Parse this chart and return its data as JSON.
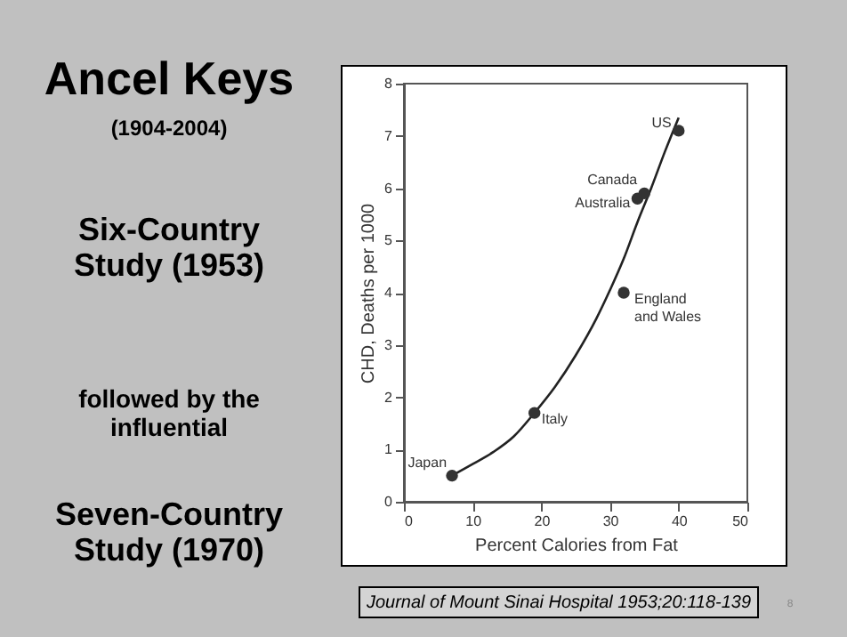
{
  "chart_data": {
    "type": "scatter",
    "title": "Ancel Keys",
    "subtitle": "(1904-2004)",
    "xlabel": "Percent Calories from Fat",
    "ylabel": "CHD, Deaths per 1000",
    "xlim": [
      0,
      50
    ],
    "xticks": [
      0,
      10,
      20,
      30,
      40,
      50
    ],
    "ylim": [
      0,
      8
    ],
    "yticks": [
      0,
      1,
      2,
      3,
      4,
      5,
      6,
      7,
      8
    ],
    "grid": false,
    "marker": "circle",
    "series": [
      {
        "type": "line",
        "marker": "none",
        "color": "#222222",
        "x": [
          7,
          10,
          13,
          16,
          19,
          22,
          25,
          28,
          30,
          32,
          34,
          36,
          38,
          40
        ],
        "values": [
          0.5,
          0.72,
          0.95,
          1.25,
          1.7,
          2.2,
          2.8,
          3.5,
          4.05,
          4.65,
          5.35,
          6.0,
          6.7,
          7.35
        ]
      },
      {
        "type": "scatter",
        "color": "#333333",
        "x": [
          7,
          19,
          32,
          34,
          35,
          40
        ],
        "values": [
          0.5,
          1.7,
          4.0,
          5.8,
          5.9,
          7.1
        ]
      }
    ],
    "annotations": [
      {
        "text": "Japan",
        "x": 7,
        "y": 0.5
      },
      {
        "text": "Italy",
        "x": 19,
        "y": 1.7
      },
      {
        "text": "England and Wales",
        "x": 32,
        "y": 4.0
      },
      {
        "text": "Australia",
        "x": 34,
        "y": 5.8
      },
      {
        "text": "Canada",
        "x": 35,
        "y": 5.9
      },
      {
        "text": "US",
        "x": 40,
        "y": 7.1
      },
      "Six-Country Study (1953)",
      "followed by the influential",
      "Seven-Country Study (1970)",
      "Journal of Mount Sinai Hospital 1953;20:118-139",
      "8"
    ]
  }
}
